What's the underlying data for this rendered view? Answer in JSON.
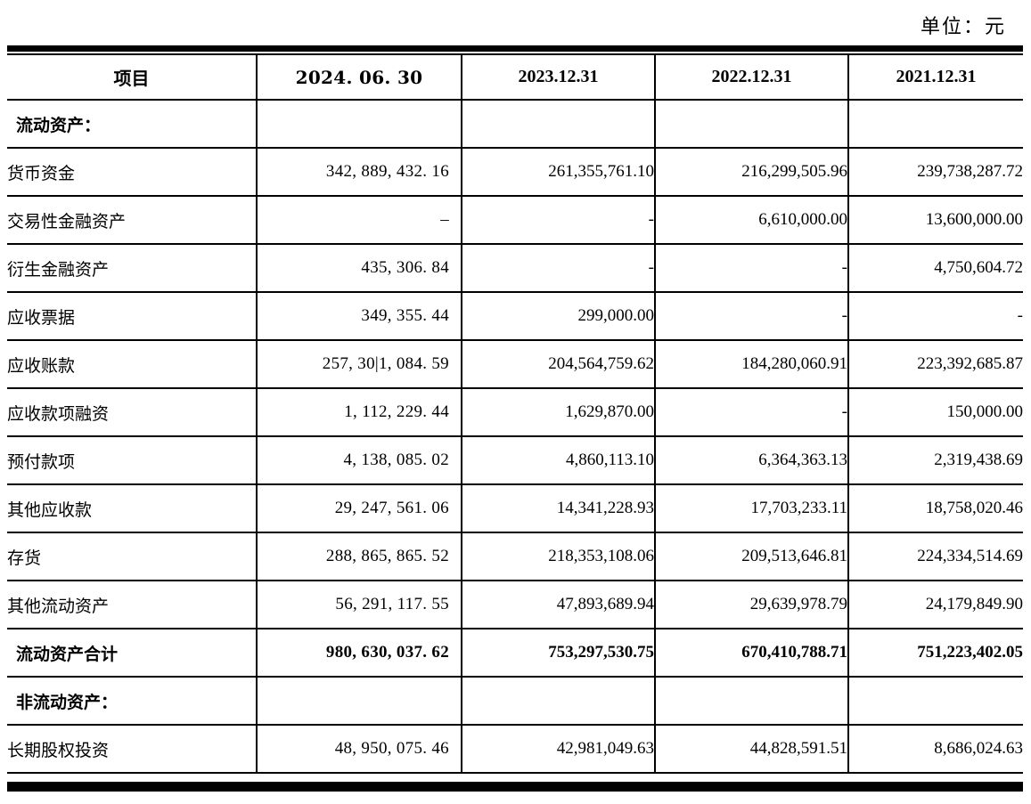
{
  "page": {
    "unit_label": "单位：元"
  },
  "table": {
    "columns": [
      "项目",
      "2024. 06. 30",
      "2023.12.31",
      "2022.12.31",
      "2021.12.31"
    ],
    "rows": [
      {
        "label": "流动资产：",
        "style": "section",
        "values": [
          "",
          "",
          "",
          ""
        ]
      },
      {
        "label": "货币资金",
        "style": "item",
        "values": [
          "342, 889, 432. 16",
          "261,355,761.10",
          "216,299,505.96",
          "239,738,287.72"
        ]
      },
      {
        "label": "交易性金融资产",
        "style": "item",
        "values": [
          "–",
          "-",
          "6,610,000.00",
          "13,600,000.00"
        ]
      },
      {
        "label": "衍生金融资产",
        "style": "item",
        "values": [
          "435, 306. 84",
          "-",
          "-",
          "4,750,604.72"
        ]
      },
      {
        "label": "应收票据",
        "style": "item",
        "values": [
          "349, 355. 44",
          "299,000.00",
          "-",
          "-"
        ]
      },
      {
        "label": "应收账款",
        "style": "item",
        "values": [
          "257, 30|1, 084. 59",
          "204,564,759.62",
          "184,280,060.91",
          "223,392,685.87"
        ]
      },
      {
        "label": "应收款项融资",
        "style": "item",
        "values": [
          "1, 112, 229. 44",
          "1,629,870.00",
          "-",
          "150,000.00"
        ]
      },
      {
        "label": "预付款项",
        "style": "item",
        "values": [
          "4, 138, 085. 02",
          "4,860,113.10",
          "6,364,363.13",
          "2,319,438.69"
        ]
      },
      {
        "label": "其他应收款",
        "style": "item",
        "values": [
          "29, 247, 561. 06",
          "14,341,228.93",
          "17,703,233.11",
          "18,758,020.46"
        ]
      },
      {
        "label": "存货",
        "style": "item",
        "values": [
          "288, 865, 865. 52",
          "218,353,108.06",
          "209,513,646.81",
          "224,334,514.69"
        ]
      },
      {
        "label": "其他流动资产",
        "style": "item",
        "values": [
          "56, 291, 117. 55",
          "47,893,689.94",
          "29,639,978.79",
          "24,179,849.90"
        ]
      },
      {
        "label": "流动资产合计",
        "style": "total",
        "values": [
          "980, 630, 037. 62",
          "753,297,530.75",
          "670,410,788.71",
          "751,223,402.05"
        ]
      },
      {
        "label": "非流动资产：",
        "style": "section",
        "values": [
          "",
          "",
          "",
          ""
        ]
      },
      {
        "label": "长期股权投资",
        "style": "item",
        "values": [
          "48, 950, 075. 46",
          "42,981,049.63",
          "44,828,591.51",
          "8,686,024.63"
        ]
      }
    ]
  }
}
